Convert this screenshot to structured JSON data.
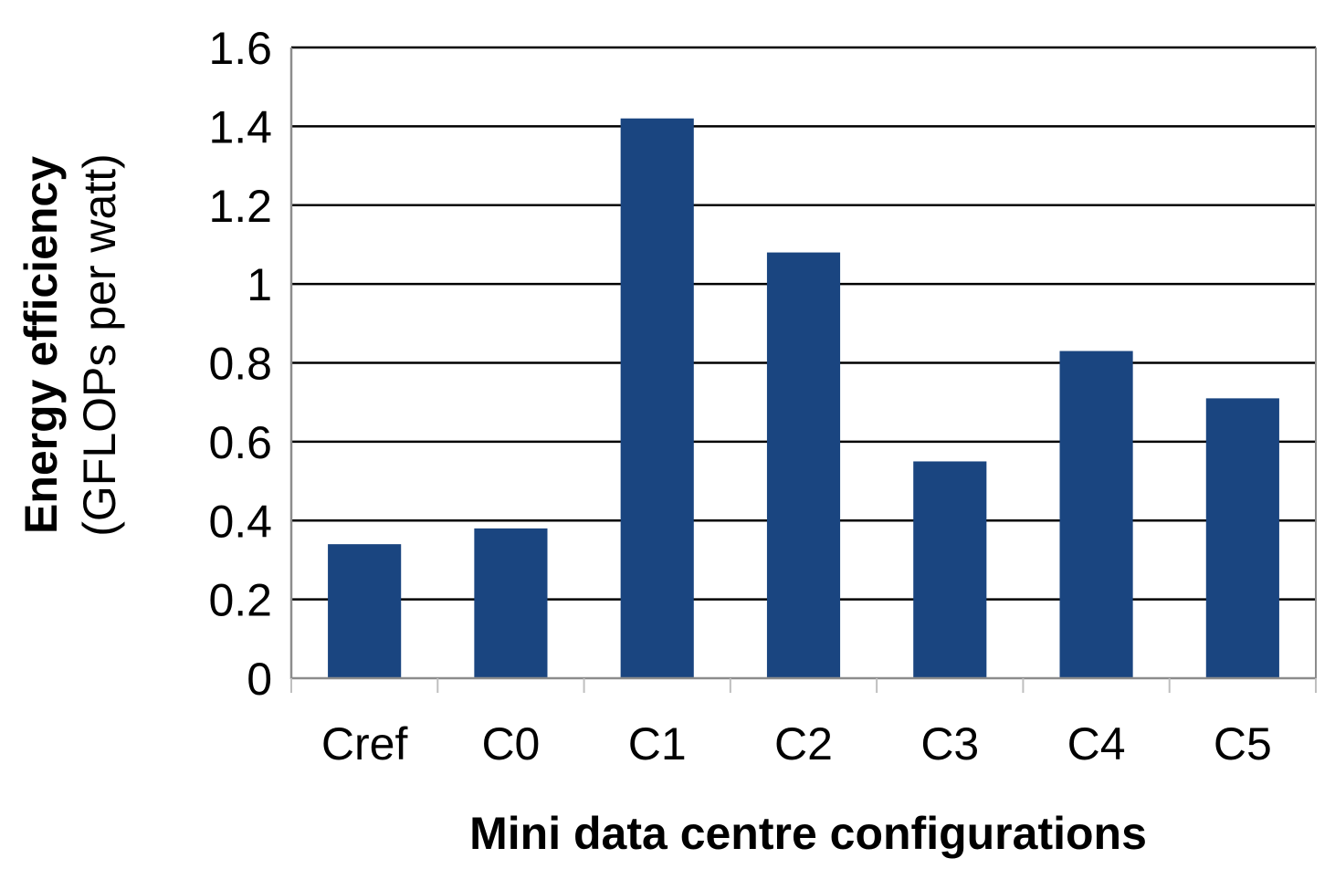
{
  "chart_data": {
    "type": "bar",
    "categories": [
      "Cref",
      "C0",
      "C1",
      "C2",
      "C3",
      "C4",
      "C5"
    ],
    "values": [
      0.34,
      0.38,
      1.42,
      1.08,
      0.55,
      0.83,
      0.71
    ],
    "title": "",
    "xlabel": "Mini data centre configurations",
    "ylabel_line1": "Energy efficiency",
    "ylabel_line2": "(GFLOPs per watt)",
    "ylim": [
      0,
      1.6
    ],
    "yticks": [
      "0",
      "0.2",
      "0.4",
      "0.6",
      "0.8",
      "1",
      "1.2",
      "1.4",
      "1.6"
    ],
    "ytick_values": [
      0,
      0.2,
      0.4,
      0.6,
      0.8,
      1.0,
      1.2,
      1.4,
      1.6
    ],
    "grid": true,
    "legend": "none",
    "bar_color": "#1a4580"
  }
}
